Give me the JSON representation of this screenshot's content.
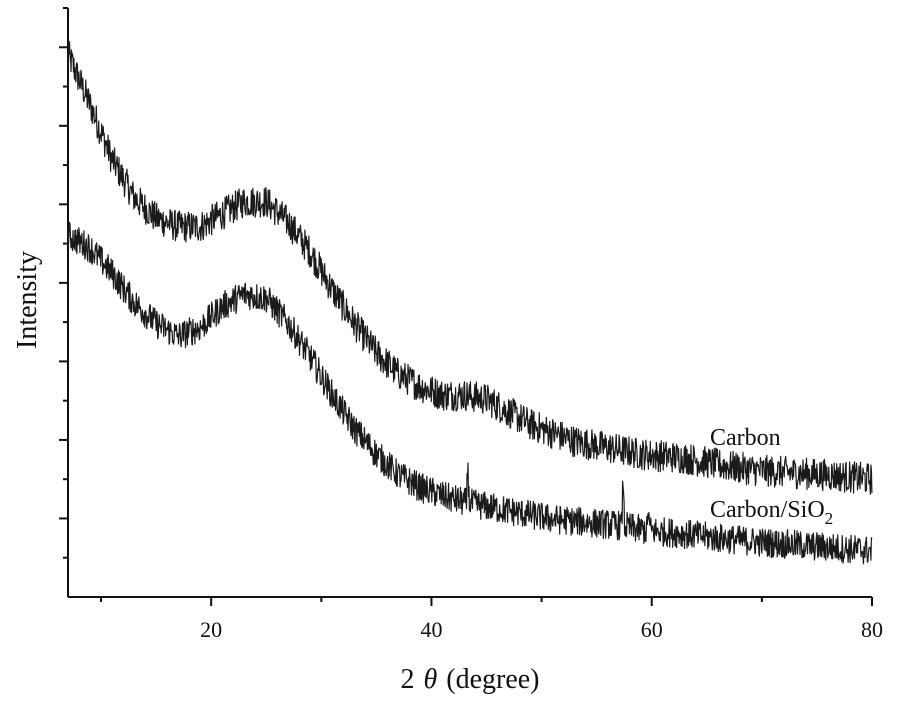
{
  "chart_data": {
    "type": "line",
    "xlabel_prefix": "2",
    "xlabel_symbol": "θ",
    "xlabel_unit": "(degree)",
    "ylabel": "Intensity",
    "xlim": [
      7,
      80
    ],
    "ylim": [
      0,
      14
    ],
    "x_ticks": [
      20,
      40,
      60,
      80
    ],
    "x_minor_ticks": [
      10,
      30,
      50,
      70
    ],
    "y_tick_count": 15,
    "grid": false,
    "series": [
      {
        "label_main": "Carbon",
        "label_sub": "",
        "color": "#1a1a1a",
        "points": [
          [
            7,
            12.9
          ],
          [
            9,
            11.7
          ],
          [
            11,
            10.4
          ],
          [
            13,
            9.5
          ],
          [
            15,
            9.0
          ],
          [
            17,
            8.8
          ],
          [
            19,
            8.8
          ],
          [
            21,
            9.1
          ],
          [
            23,
            9.4
          ],
          [
            25,
            9.4
          ],
          [
            27,
            8.9
          ],
          [
            29,
            8.2
          ],
          [
            31,
            7.3
          ],
          [
            33,
            6.5
          ],
          [
            35,
            5.8
          ],
          [
            37,
            5.3
          ],
          [
            39,
            5.0
          ],
          [
            41,
            4.8
          ],
          [
            43,
            4.8
          ],
          [
            45,
            4.7
          ],
          [
            47,
            4.4
          ],
          [
            49,
            4.1
          ],
          [
            51,
            3.9
          ],
          [
            53,
            3.7
          ],
          [
            55,
            3.6
          ],
          [
            57,
            3.5
          ],
          [
            59,
            3.4
          ],
          [
            61,
            3.35
          ],
          [
            63,
            3.3
          ],
          [
            65,
            3.2
          ],
          [
            67,
            3.1
          ],
          [
            70,
            3.0
          ],
          [
            73,
            2.95
          ],
          [
            76,
            2.9
          ],
          [
            80,
            2.8
          ]
        ],
        "spikes": [],
        "noise": 0.38
      },
      {
        "label_main": "Carbon/SiO",
        "label_sub": "2",
        "color": "#1a1a1a",
        "points": [
          [
            7,
            8.6
          ],
          [
            9,
            8.3
          ],
          [
            11,
            7.7
          ],
          [
            13,
            7.0
          ],
          [
            15,
            6.5
          ],
          [
            17,
            6.2
          ],
          [
            19,
            6.4
          ],
          [
            21,
            6.9
          ],
          [
            23,
            7.2
          ],
          [
            25,
            7.1
          ],
          [
            27,
            6.5
          ],
          [
            29,
            5.7
          ],
          [
            31,
            4.8
          ],
          [
            33,
            4.0
          ],
          [
            35,
            3.4
          ],
          [
            37,
            2.9
          ],
          [
            39,
            2.6
          ],
          [
            41,
            2.4
          ],
          [
            43,
            2.25
          ],
          [
            45,
            2.15
          ],
          [
            47,
            2.05
          ],
          [
            49,
            1.95
          ],
          [
            51,
            1.85
          ],
          [
            53,
            1.8
          ],
          [
            55,
            1.75
          ],
          [
            57,
            1.7
          ],
          [
            59,
            1.6
          ],
          [
            61,
            1.55
          ],
          [
            63,
            1.5
          ],
          [
            66,
            1.4
          ],
          [
            70,
            1.3
          ],
          [
            75,
            1.2
          ],
          [
            80,
            1.1
          ]
        ],
        "spikes": [
          [
            43.3,
            1.0
          ],
          [
            57.4,
            1.2
          ],
          [
            59.7,
            0.5
          ]
        ],
        "noise": 0.35
      }
    ]
  }
}
